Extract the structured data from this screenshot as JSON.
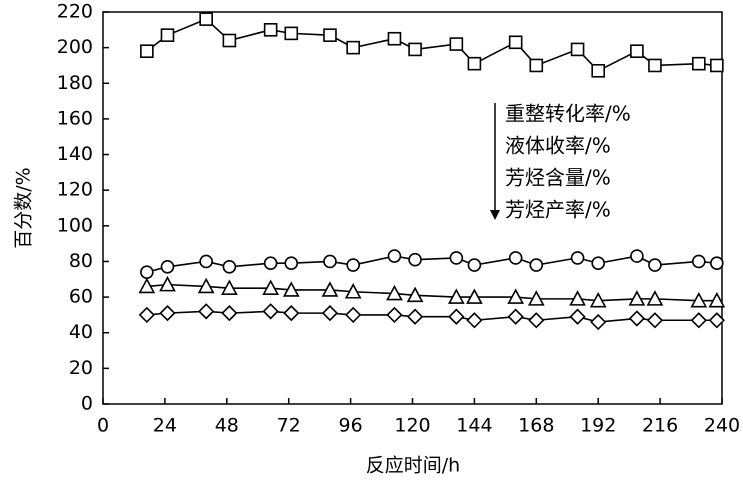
{
  "chart_data": {
    "type": "line",
    "x_label": "反应时间/h",
    "y_label": "百分数/%",
    "x": [
      17,
      25,
      40,
      49,
      65,
      73,
      88,
      97,
      113,
      121,
      137,
      144,
      160,
      168,
      184,
      192,
      207,
      214,
      231,
      238
    ],
    "series": [
      {
        "name": "重整转化率/%",
        "color": "#000000",
        "marker": "square",
        "values": [
          198,
          207,
          216,
          204,
          210,
          208,
          207,
          200,
          205,
          199,
          202,
          191,
          203,
          190,
          199,
          187,
          198,
          190,
          191,
          190
        ]
      },
      {
        "name": "液体收率/%",
        "color": "#000000",
        "marker": "circle",
        "values": [
          74,
          77,
          80,
          77,
          79,
          79,
          80,
          78,
          83,
          81,
          82,
          78,
          82,
          78,
          82,
          79,
          83,
          78,
          80,
          79
        ]
      },
      {
        "name": "芳烃含量/%",
        "color": "#000000",
        "marker": "triangle",
        "values": [
          66,
          67,
          66,
          65,
          65,
          64,
          64,
          63,
          62,
          61,
          60,
          60,
          60,
          59,
          59,
          58,
          59,
          59,
          58,
          58
        ]
      },
      {
        "name": "芳烃产率/%",
        "color": "#000000",
        "marker": "diamond",
        "values": [
          50,
          51,
          52,
          51,
          52,
          51,
          51,
          50,
          50,
          49,
          49,
          47,
          49,
          47,
          49,
          46,
          48,
          47,
          47,
          47
        ]
      }
    ],
    "xlim": [
      0,
      240
    ],
    "xticks": [
      0,
      24,
      48,
      72,
      96,
      120,
      144,
      168,
      192,
      216,
      240
    ],
    "ylim": [
      0,
      220
    ],
    "yticks": [
      0,
      20,
      40,
      60,
      80,
      100,
      120,
      140,
      160,
      180,
      200,
      220
    ],
    "grid": false
  }
}
